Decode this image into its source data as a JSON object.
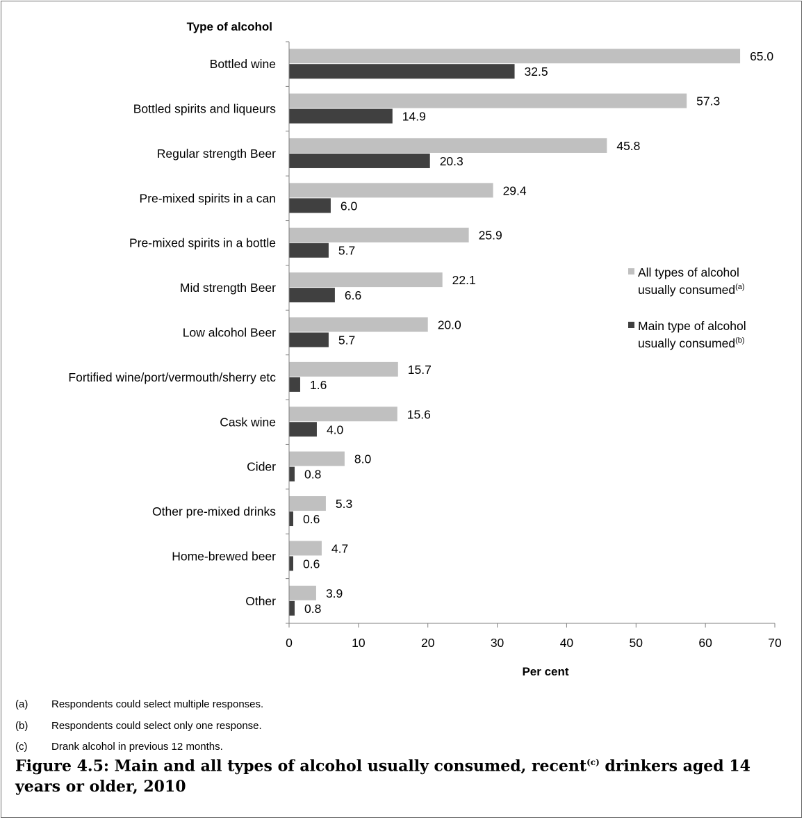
{
  "chart_data": {
    "type": "bar",
    "orientation": "horizontal",
    "ylabel": "Type of alcohol",
    "xlabel": "Per cent",
    "xlim": [
      0,
      70
    ],
    "xticks": [
      0,
      10,
      20,
      30,
      40,
      50,
      60,
      70
    ],
    "grid": false,
    "legend_position": "right",
    "categories": [
      "Bottled wine",
      "Bottled spirits and liqueurs",
      "Regular strength Beer",
      "Pre-mixed spirits in a can",
      "Pre-mixed spirits in a bottle",
      "Mid strength Beer",
      "Low alcohol Beer",
      "Fortified wine/port/vermouth/sherry etc",
      "Cask wine",
      "Cider",
      "Other pre-mixed drinks",
      "Home-brewed beer",
      "Other"
    ],
    "series": [
      {
        "name": "All types of alcohol usually consumed",
        "legend_line1": "All types of alcohol",
        "legend_line2": "usually consumed",
        "legend_note": "(a)",
        "color": "#c0c0c0",
        "values": [
          65.0,
          57.3,
          45.8,
          29.4,
          25.9,
          22.1,
          20.0,
          15.7,
          15.6,
          8.0,
          5.3,
          4.7,
          3.9
        ]
      },
      {
        "name": "Main type of alcohol usually consumed",
        "legend_line1": "Main type of alcohol",
        "legend_line2": "usually consumed",
        "legend_note": "(b)",
        "color": "#404040",
        "values": [
          32.5,
          14.9,
          20.3,
          6.0,
          5.7,
          6.6,
          5.7,
          1.6,
          4.0,
          0.8,
          0.6,
          0.6,
          0.8
        ]
      }
    ]
  },
  "footnotes": [
    {
      "mark": "(a)",
      "text": "Respondents could select multiple responses."
    },
    {
      "mark": "(b)",
      "text": "Respondents could select only one response."
    },
    {
      "mark": "(c)",
      "text": "Drank alcohol in previous 12 months."
    }
  ],
  "caption": {
    "part1": "Figure 4.5: Main and all types of alcohol usually consumed, recent",
    "note": "(c)",
    "part2": " drinkers aged 14 years or older, 2010"
  }
}
